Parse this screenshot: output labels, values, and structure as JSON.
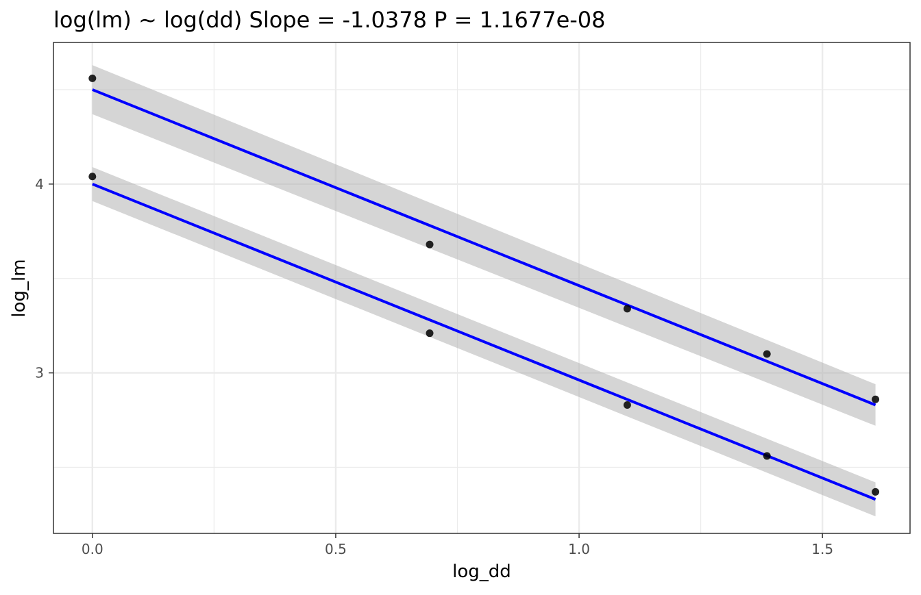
{
  "chart_data": {
    "type": "scatter",
    "title": "log(lm) ~ log(dd) Slope = -1.0378 P = 1.1677e-08",
    "xlabel": "log_dd",
    "ylabel": "log_lm",
    "xlim": [
      -0.08,
      1.68
    ],
    "ylim": [
      2.15,
      4.75
    ],
    "x_ticks": [
      0.0,
      0.5,
      1.0,
      1.5
    ],
    "x_tick_labels": [
      "0.0",
      "0.5",
      "1.0",
      "1.5"
    ],
    "y_ticks": [
      3,
      4
    ],
    "y_tick_labels": [
      "3",
      "4"
    ],
    "x_minor_gridlines": [
      0.25,
      0.75,
      1.25
    ],
    "y_minor_gridlines": [
      2.5,
      3.5,
      4.5
    ],
    "grid": true,
    "legend": "none",
    "colors": {
      "points": "#000000",
      "fit_line": "#0000ff",
      "confidence_band": "#b3b3b3",
      "panel_border": "#333333",
      "grid": "#ebebeb",
      "tick_label": "#4d4d4d"
    },
    "series": [
      {
        "points": [
          {
            "x": 0.0,
            "y": 4.56
          },
          {
            "x": 0.693,
            "y": 3.68
          },
          {
            "x": 1.099,
            "y": 3.34
          },
          {
            "x": 1.386,
            "y": 3.1
          },
          {
            "x": 1.609,
            "y": 2.86
          }
        ],
        "fit": {
          "x": [
            0.0,
            1.609
          ],
          "y": [
            4.5,
            2.83
          ]
        },
        "band": {
          "x": [
            0.0,
            1.609
          ],
          "upper": [
            4.63,
            2.94
          ],
          "lower": [
            4.37,
            2.72
          ]
        }
      },
      {
        "points": [
          {
            "x": 0.0,
            "y": 4.04
          },
          {
            "x": 0.693,
            "y": 3.21
          },
          {
            "x": 1.099,
            "y": 2.83
          },
          {
            "x": 1.386,
            "y": 2.56
          },
          {
            "x": 1.609,
            "y": 2.37
          }
        ],
        "fit": {
          "x": [
            0.0,
            1.609
          ],
          "y": [
            4.0,
            2.33
          ]
        },
        "band": {
          "x": [
            0.0,
            1.609
          ],
          "upper": [
            4.09,
            2.42
          ],
          "lower": [
            3.91,
            2.24
          ]
        }
      }
    ]
  }
}
